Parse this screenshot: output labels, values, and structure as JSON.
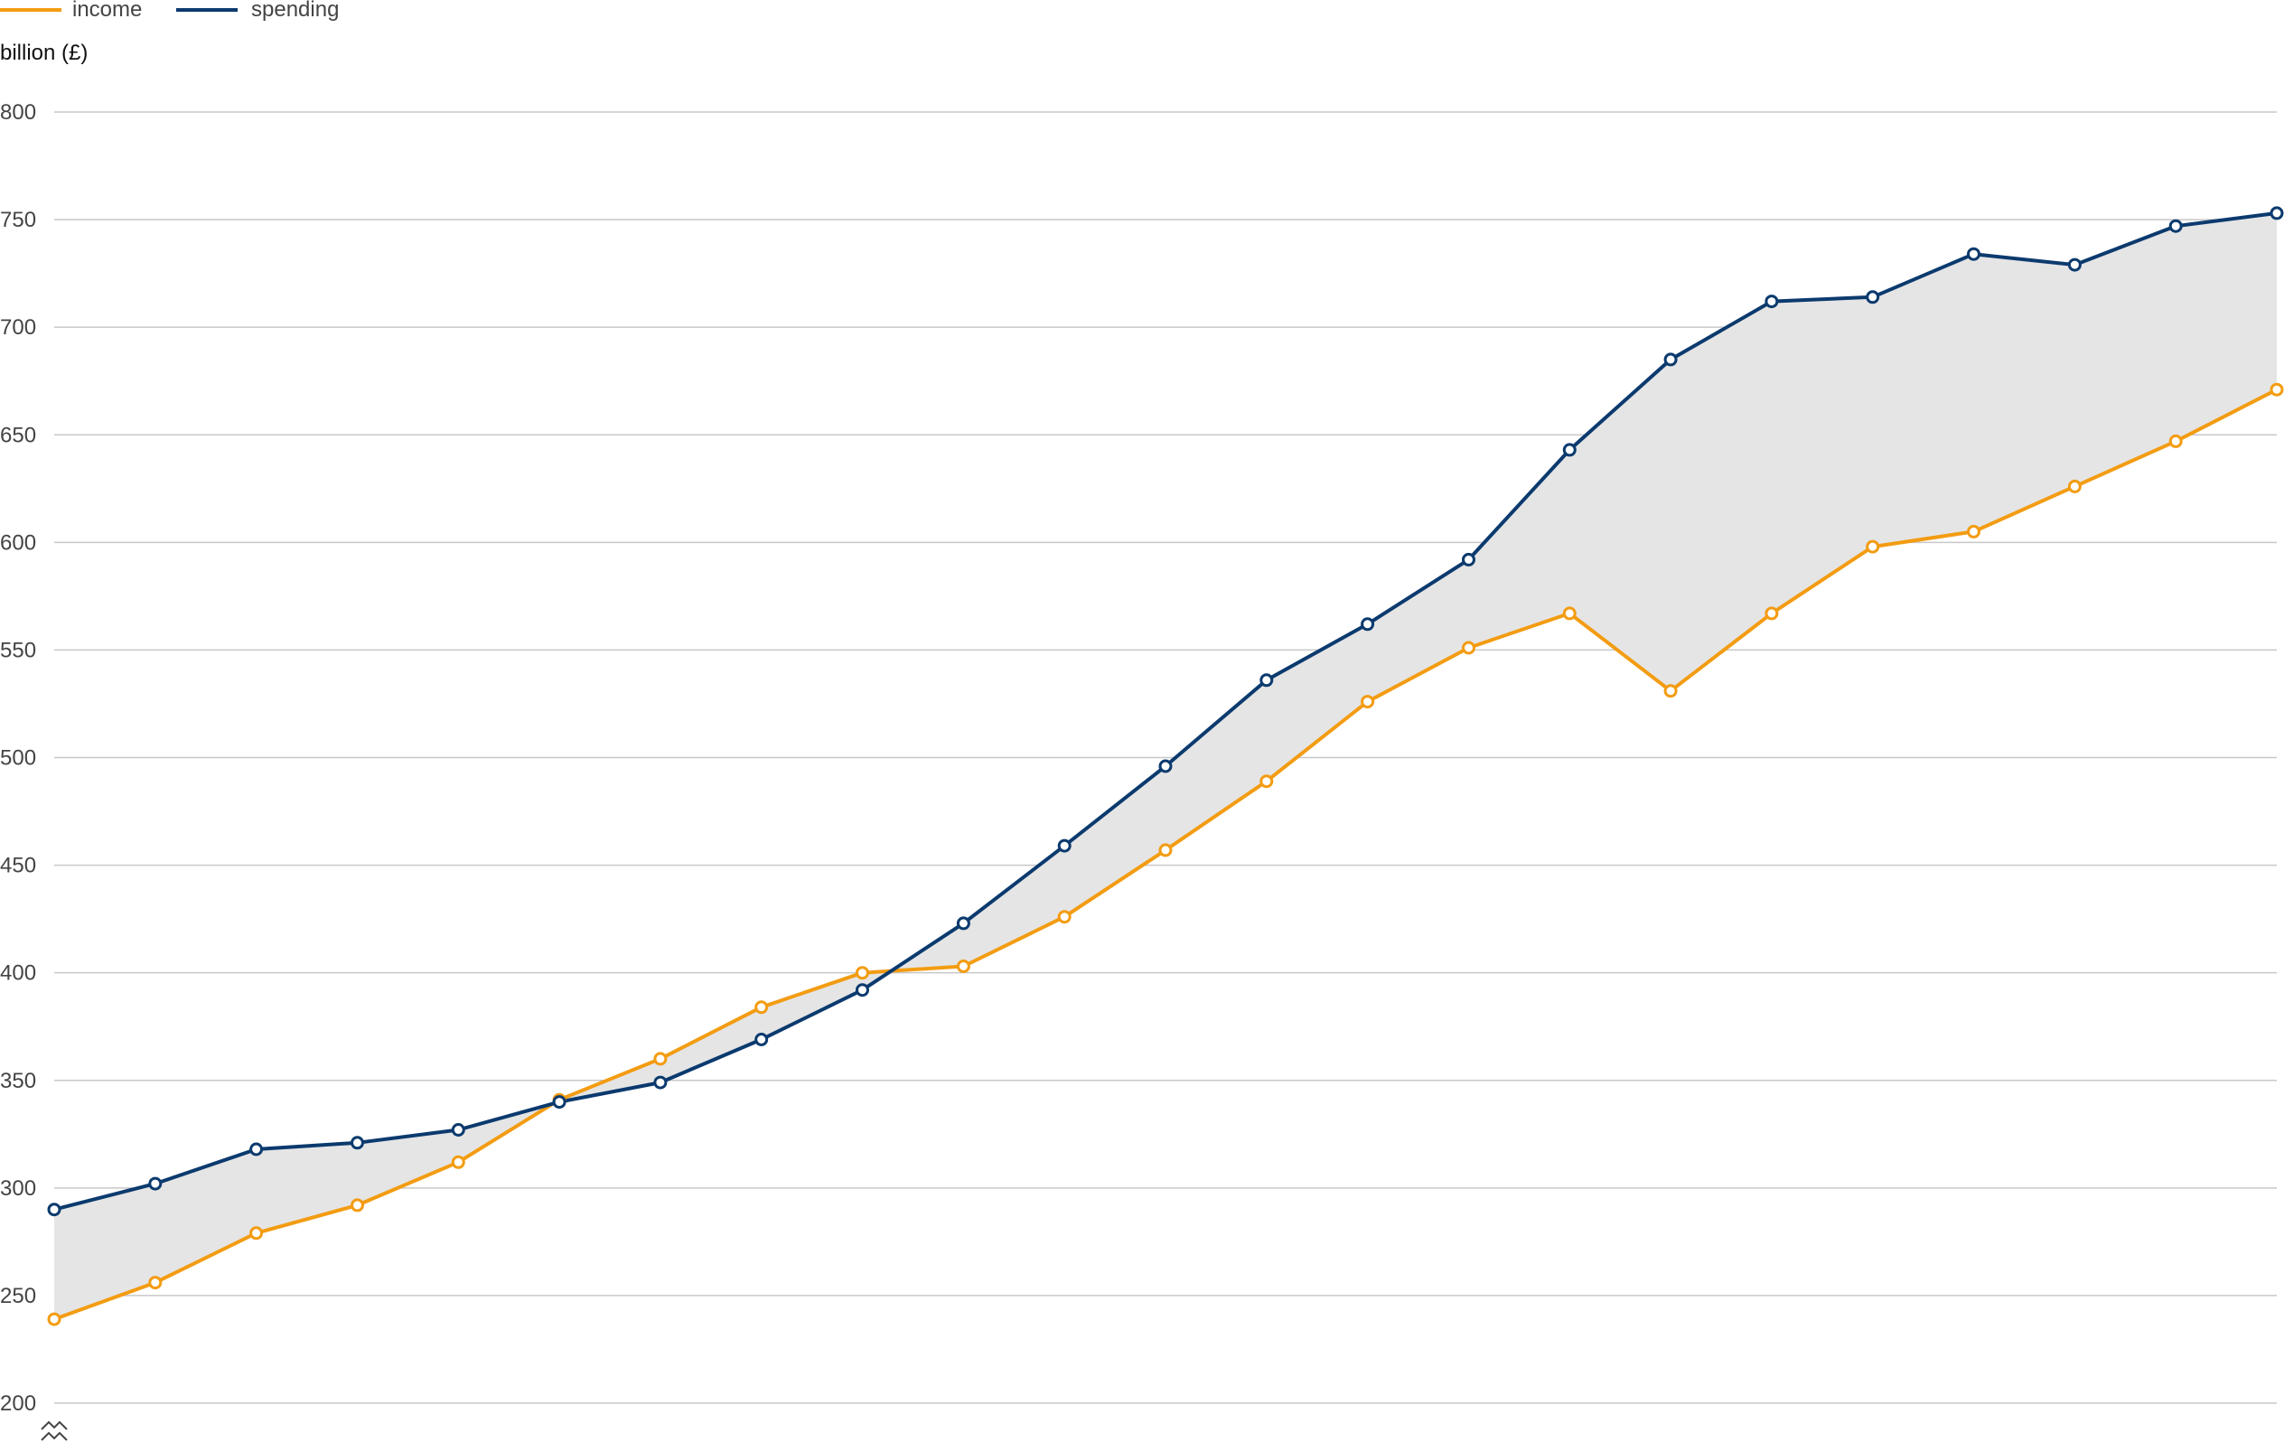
{
  "chart_data": {
    "type": "line",
    "ylabel": "billion (£)",
    "ylim": [
      200,
      800
    ],
    "yticks": [
      200,
      250,
      300,
      350,
      400,
      450,
      500,
      550,
      600,
      650,
      700,
      750,
      800
    ],
    "grid": true,
    "legend_position": "top-left",
    "shaded_between_series": true,
    "series": [
      {
        "name": "income",
        "color": "#f39c12",
        "values": [
          239,
          256,
          279,
          292,
          312,
          341,
          360,
          384,
          400,
          403,
          426,
          457,
          489,
          526,
          551,
          567,
          531,
          567,
          598,
          605,
          626,
          647,
          671
        ]
      },
      {
        "name": "spending",
        "color": "#0b3a6e",
        "values": [
          290,
          302,
          318,
          321,
          327,
          340,
          349,
          369,
          392,
          423,
          459,
          496,
          536,
          562,
          592,
          643,
          685,
          712,
          714,
          734,
          729,
          747,
          753
        ]
      }
    ],
    "fill_color": "#e5e5e5",
    "axis_break_icon": "axis-break-zigzag-icon"
  }
}
